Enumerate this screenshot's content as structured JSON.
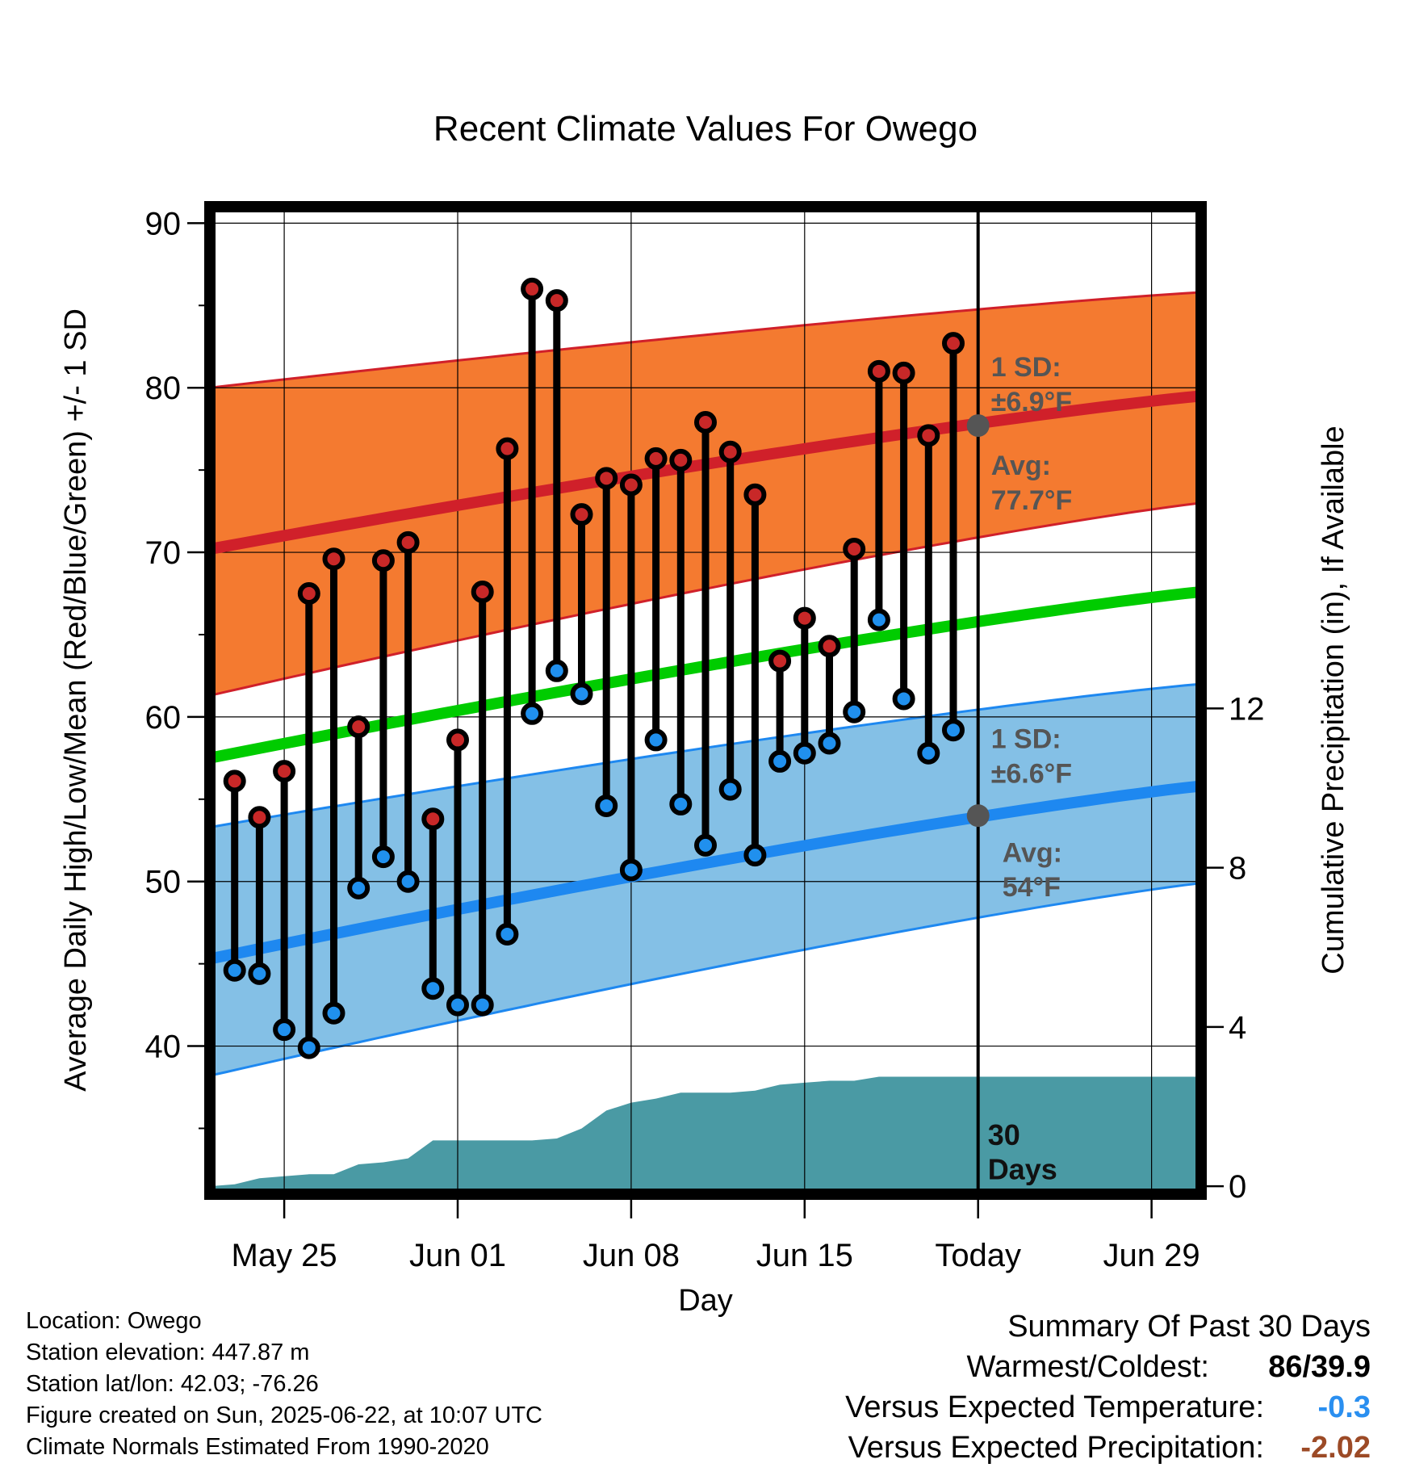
{
  "chart_data": {
    "type": "line",
    "title": "Recent Climate Values For Owego",
    "xlabel": "Day",
    "ylabel": "Average Daily High/Low/Mean (Red/Blue/Green) +/- 1 SD",
    "y2label": "Cumulative Precipitation (in), If Available",
    "ylim": [
      31,
      91
    ],
    "y2lim": [
      -0.2,
      24.6
    ],
    "x_range": [
      "2025-05-22",
      "2025-07-01"
    ],
    "x_ticks": [
      {
        "date": "2025-05-25",
        "label": "May 25"
      },
      {
        "date": "2025-06-01",
        "label": "Jun 01"
      },
      {
        "date": "2025-06-08",
        "label": "Jun 08"
      },
      {
        "date": "2025-06-15",
        "label": "Jun 15"
      },
      {
        "date": "2025-06-22",
        "label": "Today"
      },
      {
        "date": "2025-06-29",
        "label": "Jun 29"
      }
    ],
    "y_ticks": [
      40,
      50,
      60,
      70,
      80,
      90
    ],
    "y2_ticks": [
      0,
      4,
      8,
      12
    ],
    "today": "2025-06-22",
    "normal_high": {
      "start": 70.2,
      "end": 79.5,
      "sd_upper_start": 80.0,
      "sd_upper_end": 85.8,
      "sd_lower_start": 61.3,
      "sd_lower_end": 73.0
    },
    "normal_low": {
      "start": 45.3,
      "end": 55.8,
      "sd_upper_start": 53.3,
      "sd_upper_end": 62.0,
      "sd_lower_start": 38.2,
      "sd_lower_end": 49.9
    },
    "normal_mean": {
      "start": 57.5,
      "end": 67.6
    },
    "annotations": {
      "high_sd_line1": "1 SD:",
      "high_sd_line2": "±6.9°F",
      "high_avg_line1": "Avg:",
      "high_avg_line2": "77.7°F",
      "low_sd_line1": "1 SD:",
      "low_sd_line2": "±6.6°F",
      "low_avg_line1": "Avg:",
      "low_avg_line2": "54°F",
      "days_line1": "30",
      "days_line2": "Days"
    },
    "today_avg_high": 77.7,
    "today_avg_low": 54,
    "daily": [
      {
        "date": "2025-05-23",
        "high": 56.1,
        "low": 44.6
      },
      {
        "date": "2025-05-24",
        "high": 53.9,
        "low": 44.4
      },
      {
        "date": "2025-05-25",
        "high": 56.7,
        "low": 41.0
      },
      {
        "date": "2025-05-26",
        "high": 67.5,
        "low": 39.9
      },
      {
        "date": "2025-05-27",
        "high": 69.6,
        "low": 42.0
      },
      {
        "date": "2025-05-28",
        "high": 59.4,
        "low": 49.6
      },
      {
        "date": "2025-05-29",
        "high": 69.5,
        "low": 51.5
      },
      {
        "date": "2025-05-30",
        "high": 70.6,
        "low": 50.0
      },
      {
        "date": "2025-05-31",
        "high": 53.8,
        "low": 43.5
      },
      {
        "date": "2025-06-01",
        "high": 58.6,
        "low": 42.5
      },
      {
        "date": "2025-06-02",
        "high": 67.6,
        "low": 42.5
      },
      {
        "date": "2025-06-03",
        "high": 76.3,
        "low": 46.8
      },
      {
        "date": "2025-06-04",
        "high": 86.0,
        "low": 60.2
      },
      {
        "date": "2025-06-05",
        "high": 85.3,
        "low": 62.8
      },
      {
        "date": "2025-06-06",
        "high": 72.3,
        "low": 61.4
      },
      {
        "date": "2025-06-07",
        "high": 74.5,
        "low": 54.6
      },
      {
        "date": "2025-06-08",
        "high": 74.1,
        "low": 50.7
      },
      {
        "date": "2025-06-09",
        "high": 75.7,
        "low": 58.6
      },
      {
        "date": "2025-06-10",
        "high": 75.6,
        "low": 54.7
      },
      {
        "date": "2025-06-11",
        "high": 77.9,
        "low": 52.2
      },
      {
        "date": "2025-06-12",
        "high": 76.1,
        "low": 55.6
      },
      {
        "date": "2025-06-13",
        "high": 73.5,
        "low": 51.6
      },
      {
        "date": "2025-06-14",
        "high": 63.4,
        "low": 57.3
      },
      {
        "date": "2025-06-15",
        "high": 66.0,
        "low": 57.8
      },
      {
        "date": "2025-06-16",
        "high": 64.3,
        "low": 58.4
      },
      {
        "date": "2025-06-17",
        "high": 70.2,
        "low": 60.3
      },
      {
        "date": "2025-06-18",
        "high": 81.0,
        "low": 65.9
      },
      {
        "date": "2025-06-19",
        "high": 80.9,
        "low": 61.1
      },
      {
        "date": "2025-06-20",
        "high": 77.1,
        "low": 57.8
      },
      {
        "date": "2025-06-21",
        "high": 82.7,
        "low": 59.2
      }
    ],
    "cumulative_precip": [
      {
        "date": "2025-05-22",
        "value": 0.0
      },
      {
        "date": "2025-05-23",
        "value": 0.05
      },
      {
        "date": "2025-05-24",
        "value": 0.2
      },
      {
        "date": "2025-05-25",
        "value": 0.25
      },
      {
        "date": "2025-05-26",
        "value": 0.3
      },
      {
        "date": "2025-05-27",
        "value": 0.3
      },
      {
        "date": "2025-05-28",
        "value": 0.55
      },
      {
        "date": "2025-05-29",
        "value": 0.6
      },
      {
        "date": "2025-05-30",
        "value": 0.7
      },
      {
        "date": "2025-05-31",
        "value": 1.15
      },
      {
        "date": "2025-06-01",
        "value": 1.15
      },
      {
        "date": "2025-06-02",
        "value": 1.15
      },
      {
        "date": "2025-06-03",
        "value": 1.15
      },
      {
        "date": "2025-06-04",
        "value": 1.15
      },
      {
        "date": "2025-06-05",
        "value": 1.2
      },
      {
        "date": "2025-06-06",
        "value": 1.45
      },
      {
        "date": "2025-06-07",
        "value": 1.9
      },
      {
        "date": "2025-06-08",
        "value": 2.1
      },
      {
        "date": "2025-06-09",
        "value": 2.2
      },
      {
        "date": "2025-06-10",
        "value": 2.35
      },
      {
        "date": "2025-06-11",
        "value": 2.35
      },
      {
        "date": "2025-06-12",
        "value": 2.35
      },
      {
        "date": "2025-06-13",
        "value": 2.4
      },
      {
        "date": "2025-06-14",
        "value": 2.55
      },
      {
        "date": "2025-06-15",
        "value": 2.6
      },
      {
        "date": "2025-06-16",
        "value": 2.65
      },
      {
        "date": "2025-06-17",
        "value": 2.65
      },
      {
        "date": "2025-06-18",
        "value": 2.75
      },
      {
        "date": "2025-06-19",
        "value": 2.75
      },
      {
        "date": "2025-06-20",
        "value": 2.75
      },
      {
        "date": "2025-06-21",
        "value": 2.75
      },
      {
        "date": "2025-06-22",
        "value": 2.75
      },
      {
        "date": "2025-07-01",
        "value": 2.75
      }
    ],
    "colors": {
      "high_band": "#f47a30",
      "high_line": "#d0202a",
      "low_band": "#84c0e6",
      "low_line": "#1e88f0",
      "mean_line": "#00cc00",
      "precip": "#4a9aa4",
      "high_dot": "#c82828",
      "low_dot": "#2090ee",
      "avg_dot": "#555555"
    }
  },
  "info": {
    "location": "Location: Owego",
    "elevation": "Station elevation: 447.87 m",
    "latlon": "Station lat/lon: 42.03; -76.26",
    "created": "Figure created on Sun, 2025-06-22, at 10:07 UTC",
    "normals": "Climate Normals Estimated From 1990-2020"
  },
  "summary": {
    "heading": "Summary Of Past 30 Days",
    "warmest_label": "Warmest/Coldest:",
    "warmest_value": "86/39.9",
    "temp_label": "Versus Expected Temperature:",
    "temp_value": "-0.3",
    "temp_color": "#2a8ff0",
    "precip_label": "Versus Expected Precipitation:",
    "precip_value": "-2.02",
    "precip_color": "#9c4a26"
  }
}
